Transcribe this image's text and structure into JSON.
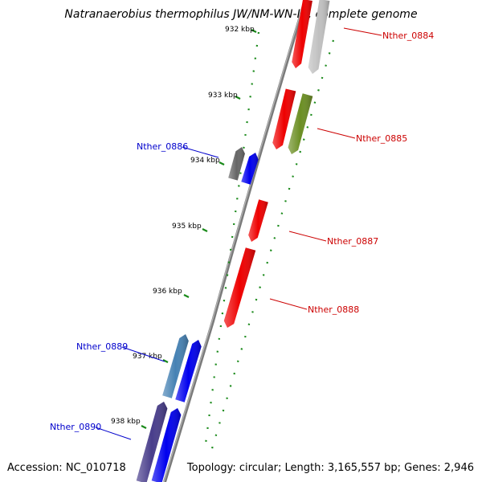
{
  "title": "Natranaerobius thermophilus JW/NM-WN-LF, complete genome",
  "footer": {
    "accession": "Accession: NC_010718",
    "summary": "Topology: circular; Length: 3,165,557 bp; Genes: 2,946"
  },
  "colors": {
    "backbone": "#808080",
    "tick": "#1a8a1a",
    "label_red": "#cc0000",
    "label_blue": "#0000cc"
  },
  "ticks": [
    "932 kbp",
    "933 kbp",
    "934 kbp",
    "935 kbp",
    "936 kbp",
    "937 kbp",
    "938 kbp"
  ],
  "genes": [
    {
      "id": "gene-0884a",
      "color": "#ee0000",
      "strand": "forward"
    },
    {
      "id": "gene-0884b",
      "color": "#c0c0c0",
      "strand": "forward"
    },
    {
      "id": "gene-0885a",
      "color": "#ee0000",
      "strand": "forward"
    },
    {
      "id": "gene-0885b",
      "color": "#6b8e23",
      "strand": "forward"
    },
    {
      "id": "gene-0886a",
      "color": "#666666",
      "strand": "reverse"
    },
    {
      "id": "gene-0886b",
      "color": "#0000ee",
      "strand": "reverse"
    },
    {
      "id": "gene-0887",
      "color": "#ee0000",
      "strand": "forward"
    },
    {
      "id": "gene-0888",
      "color": "#ee0000",
      "strand": "forward"
    },
    {
      "id": "gene-0889a",
      "color": "#4682b4",
      "strand": "reverse"
    },
    {
      "id": "gene-0889b",
      "color": "#0000ee",
      "strand": "reverse"
    },
    {
      "id": "gene-0890a",
      "color": "#483d8b",
      "strand": "reverse"
    },
    {
      "id": "gene-0890b",
      "color": "#0000ee",
      "strand": "reverse"
    }
  ],
  "labels": [
    {
      "text": "Nther_0884",
      "color": "red"
    },
    {
      "text": "Nther_0885",
      "color": "red"
    },
    {
      "text": "Nther_0886",
      "color": "blue"
    },
    {
      "text": "Nther_0887",
      "color": "red"
    },
    {
      "text": "Nther_0888",
      "color": "red"
    },
    {
      "text": "Nther_0889",
      "color": "blue"
    },
    {
      "text": "Nther_0890",
      "color": "blue"
    }
  ]
}
